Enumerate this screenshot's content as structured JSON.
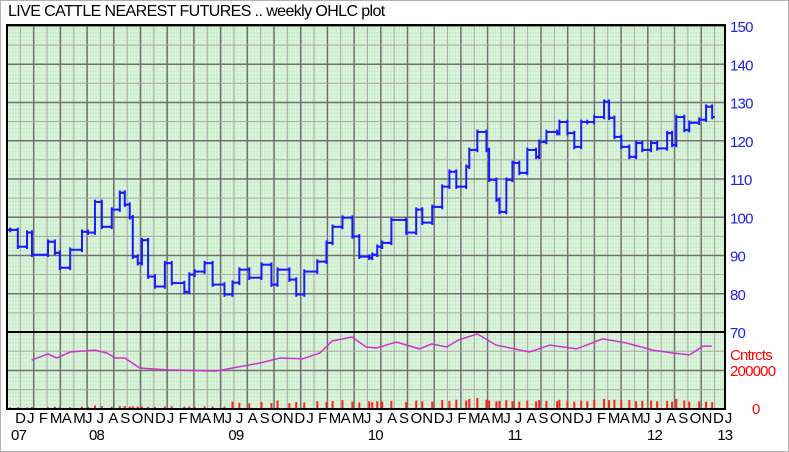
{
  "chart_data": {
    "type": "ohlc",
    "title": "LIVE CATTLE NEAREST FUTURES .. weekly OHLC plot",
    "price_axis": {
      "ticks": [
        150,
        140,
        130,
        120,
        110,
        100,
        90,
        80,
        70
      ],
      "ylim": [
        70,
        150
      ],
      "position": "right",
      "color": "#2020e0"
    },
    "volume_axis": {
      "label": "Cntrcts",
      "ticks": [
        {
          "label": "200000",
          "value": 200000
        },
        {
          "label": "0",
          "value": 0
        }
      ],
      "ylim": [
        0,
        400000
      ],
      "color": "#ff0000"
    },
    "xlim": [
      "2007-11-15",
      "2013-01-10"
    ],
    "grid": true,
    "colors": {
      "price": "#1a1aff",
      "open_interest": "#cc33cc",
      "volume": "#ff2020",
      "background": "#cdeecd",
      "axis": "#2020e0"
    },
    "month_labels": [
      {
        "label": "D",
        "date": "2007-12-01"
      },
      {
        "label": "J",
        "date": "2008-01-01"
      },
      {
        "label": "F",
        "date": "2008-02-01"
      },
      {
        "label": "M",
        "date": "2008-03-01"
      },
      {
        "label": "A",
        "date": "2008-04-01"
      },
      {
        "label": "M",
        "date": "2008-05-01"
      },
      {
        "label": "J",
        "date": "2008-06-01"
      },
      {
        "label": "J",
        "date": "2008-07-01"
      },
      {
        "label": "A",
        "date": "2008-08-01"
      },
      {
        "label": "S",
        "date": "2008-09-01"
      },
      {
        "label": "O",
        "date": "2008-10-01"
      },
      {
        "label": "N",
        "date": "2008-11-01"
      },
      {
        "label": "D",
        "date": "2008-12-01"
      },
      {
        "label": "J",
        "date": "2009-01-01"
      },
      {
        "label": "F",
        "date": "2009-02-01"
      },
      {
        "label": "M",
        "date": "2009-03-01"
      },
      {
        "label": "A",
        "date": "2009-04-01"
      },
      {
        "label": "M",
        "date": "2009-05-01"
      },
      {
        "label": "J",
        "date": "2009-06-01"
      },
      {
        "label": "J",
        "date": "2009-07-01"
      },
      {
        "label": "A",
        "date": "2009-08-01"
      },
      {
        "label": "S",
        "date": "2009-09-01"
      },
      {
        "label": "O",
        "date": "2009-10-01"
      },
      {
        "label": "N",
        "date": "2009-11-01"
      },
      {
        "label": "D",
        "date": "2009-12-01"
      },
      {
        "label": "J",
        "date": "2010-01-01"
      },
      {
        "label": "F",
        "date": "2010-02-01"
      },
      {
        "label": "M",
        "date": "2010-03-01"
      },
      {
        "label": "A",
        "date": "2010-04-01"
      },
      {
        "label": "M",
        "date": "2010-05-01"
      },
      {
        "label": "J",
        "date": "2010-06-01"
      },
      {
        "label": "J",
        "date": "2010-07-01"
      },
      {
        "label": "A",
        "date": "2010-08-01"
      },
      {
        "label": "S",
        "date": "2010-09-01"
      },
      {
        "label": "O",
        "date": "2010-10-01"
      },
      {
        "label": "N",
        "date": "2010-11-01"
      },
      {
        "label": "D",
        "date": "2010-12-01"
      },
      {
        "label": "J",
        "date": "2011-01-01"
      },
      {
        "label": "F",
        "date": "2011-02-01"
      },
      {
        "label": "M",
        "date": "2011-03-01"
      },
      {
        "label": "A",
        "date": "2011-04-01"
      },
      {
        "label": "M",
        "date": "2011-05-01"
      },
      {
        "label": "J",
        "date": "2011-06-01"
      },
      {
        "label": "J",
        "date": "2011-07-01"
      },
      {
        "label": "A",
        "date": "2011-08-01"
      },
      {
        "label": "S",
        "date": "2011-09-01"
      },
      {
        "label": "O",
        "date": "2011-10-01"
      },
      {
        "label": "N",
        "date": "2011-11-01"
      },
      {
        "label": "D",
        "date": "2011-12-01"
      },
      {
        "label": "J",
        "date": "2012-01-01"
      },
      {
        "label": "F",
        "date": "2012-02-01"
      },
      {
        "label": "M",
        "date": "2012-03-01"
      },
      {
        "label": "A",
        "date": "2012-04-01"
      },
      {
        "label": "M",
        "date": "2012-05-01"
      },
      {
        "label": "J",
        "date": "2012-06-01"
      },
      {
        "label": "J",
        "date": "2012-07-01"
      },
      {
        "label": "A",
        "date": "2012-08-01"
      },
      {
        "label": "S",
        "date": "2012-09-01"
      },
      {
        "label": "O",
        "date": "2012-10-01"
      },
      {
        "label": "N",
        "date": "2012-11-01"
      },
      {
        "label": "D",
        "date": "2012-12-01"
      },
      {
        "label": "J",
        "date": "2013-01-01"
      }
    ],
    "year_labels": [
      {
        "label": "07",
        "date": "2007-12-10"
      },
      {
        "label": "08",
        "date": "2008-07-01"
      },
      {
        "label": "09",
        "date": "2009-07-01"
      },
      {
        "label": "10",
        "date": "2010-07-01"
      },
      {
        "label": "11",
        "date": "2011-07-01"
      },
      {
        "label": "12",
        "date": "2012-07-01"
      },
      {
        "label": "13",
        "date": "2013-01-01"
      }
    ],
    "price": [
      {
        "date": "2007-11-18",
        "close": 96.7,
        "volume": 8000
      },
      {
        "date": "2007-12-08",
        "close": 92.3,
        "volume": 9000
      },
      {
        "date": "2008-01-01",
        "close": 96.0,
        "volume": 8000
      },
      {
        "date": "2008-01-14",
        "close": 90.2,
        "volume": 10000
      },
      {
        "date": "2008-02-25",
        "close": 93.6,
        "volume": 9000
      },
      {
        "date": "2008-03-14",
        "close": 90.7,
        "volume": 12000
      },
      {
        "date": "2008-03-27",
        "close": 86.8,
        "volume": 10000
      },
      {
        "date": "2008-04-23",
        "close": 91.5,
        "volume": 9000
      },
      {
        "date": "2008-05-24",
        "close": 96.2,
        "volume": 12000
      },
      {
        "date": "2008-06-09",
        "close": 96.0,
        "volume": 11000
      },
      {
        "date": "2008-06-27",
        "close": 104.0,
        "volume": 18000
      },
      {
        "date": "2008-07-15",
        "close": 97.5,
        "volume": 15000
      },
      {
        "date": "2008-08-10",
        "close": 102.0,
        "volume": 12000
      },
      {
        "date": "2008-08-31",
        "close": 106.4,
        "volume": 14000
      },
      {
        "date": "2008-09-13",
        "close": 103.3,
        "volume": 15000
      },
      {
        "date": "2008-09-26",
        "close": 100.0,
        "volume": 13000
      },
      {
        "date": "2008-10-04",
        "close": 89.7,
        "volume": 14000
      },
      {
        "date": "2008-10-17",
        "close": 88.0,
        "volume": 12000
      },
      {
        "date": "2008-10-28",
        "close": 94.0,
        "volume": 13000
      },
      {
        "date": "2008-11-13",
        "close": 84.5,
        "volume": 12000
      },
      {
        "date": "2008-12-01",
        "close": 81.9,
        "volume": 11000
      },
      {
        "date": "2008-12-27",
        "close": 88.0,
        "volume": 13000
      },
      {
        "date": "2009-01-14",
        "close": 82.8,
        "volume": 14000
      },
      {
        "date": "2009-02-16",
        "close": 80.5,
        "volume": 12000
      },
      {
        "date": "2009-03-01",
        "close": 85.0,
        "volume": 13000
      },
      {
        "date": "2009-03-15",
        "close": 85.8,
        "volume": 12000
      },
      {
        "date": "2009-04-10",
        "close": 88.0,
        "volume": 14000
      },
      {
        "date": "2009-05-01",
        "close": 82.4,
        "volume": 13000
      },
      {
        "date": "2009-06-01",
        "close": 79.8,
        "volume": 12000
      },
      {
        "date": "2009-06-22",
        "close": 82.9,
        "volume": 38000
      },
      {
        "date": "2009-07-10",
        "close": 86.3,
        "volume": 32000
      },
      {
        "date": "2009-08-05",
        "close": 84.2,
        "volume": 30000
      },
      {
        "date": "2009-09-06",
        "close": 87.6,
        "volume": 36000
      },
      {
        "date": "2009-10-02",
        "close": 82.4,
        "volume": 31000
      },
      {
        "date": "2009-10-18",
        "close": 86.3,
        "volume": 44000
      },
      {
        "date": "2009-11-18",
        "close": 83.7,
        "volume": 30000
      },
      {
        "date": "2009-12-06",
        "close": 79.8,
        "volume": 36000
      },
      {
        "date": "2009-12-27",
        "close": 85.8,
        "volume": 34000
      },
      {
        "date": "2010-01-30",
        "close": 88.4,
        "volume": 40000
      },
      {
        "date": "2010-02-23",
        "close": 93.3,
        "volume": 36000
      },
      {
        "date": "2010-03-11",
        "close": 97.5,
        "volume": 42000
      },
      {
        "date": "2010-04-06",
        "close": 99.9,
        "volume": 46000
      },
      {
        "date": "2010-05-02",
        "close": 95.0,
        "volume": 38000
      },
      {
        "date": "2010-05-20",
        "close": 89.7,
        "volume": 34000
      },
      {
        "date": "2010-06-15",
        "close": 89.4,
        "volume": 40000
      },
      {
        "date": "2010-06-23",
        "close": 90.2,
        "volume": 36000
      },
      {
        "date": "2010-07-06",
        "close": 92.3,
        "volume": 40000
      },
      {
        "date": "2010-07-19",
        "close": 93.3,
        "volume": 38000
      },
      {
        "date": "2010-08-12",
        "close": 99.3,
        "volume": 42000
      },
      {
        "date": "2010-09-20",
        "close": 96.0,
        "volume": 36000
      },
      {
        "date": "2010-10-16",
        "close": 102.0,
        "volume": 44000
      },
      {
        "date": "2010-11-01",
        "close": 98.6,
        "volume": 40000
      },
      {
        "date": "2010-11-27",
        "close": 102.7,
        "volume": 38000
      },
      {
        "date": "2010-12-23",
        "close": 108.0,
        "volume": 46000
      },
      {
        "date": "2011-01-11",
        "close": 111.9,
        "volume": 42000
      },
      {
        "date": "2011-01-29",
        "close": 108.0,
        "volume": 48000
      },
      {
        "date": "2011-02-24",
        "close": 113.2,
        "volume": 44000
      },
      {
        "date": "2011-03-04",
        "close": 117.6,
        "volume": 52000
      },
      {
        "date": "2011-03-25",
        "close": 122.3,
        "volume": 58000
      },
      {
        "date": "2011-04-18",
        "close": 117.6,
        "volume": 48000
      },
      {
        "date": "2011-04-25",
        "close": 109.8,
        "volume": 44000
      },
      {
        "date": "2011-05-14",
        "close": 104.6,
        "volume": 40000
      },
      {
        "date": "2011-05-22",
        "close": 101.4,
        "volume": 42000
      },
      {
        "date": "2011-06-09",
        "close": 109.8,
        "volume": 46000
      },
      {
        "date": "2011-06-25",
        "close": 114.2,
        "volume": 40000
      },
      {
        "date": "2011-07-13",
        "close": 111.6,
        "volume": 38000
      },
      {
        "date": "2011-08-03",
        "close": 117.6,
        "volume": 44000
      },
      {
        "date": "2011-08-26",
        "close": 115.8,
        "volume": 40000
      },
      {
        "date": "2011-09-03",
        "close": 119.7,
        "volume": 46000
      },
      {
        "date": "2011-09-22",
        "close": 122.3,
        "volume": 42000
      },
      {
        "date": "2011-10-20",
        "close": 122.0,
        "volume": 40000
      },
      {
        "date": "2011-10-26",
        "close": 124.9,
        "volume": 48000
      },
      {
        "date": "2011-11-16",
        "close": 122.0,
        "volume": 42000
      },
      {
        "date": "2011-12-04",
        "close": 118.4,
        "volume": 38000
      },
      {
        "date": "2011-12-22",
        "close": 124.9,
        "volume": 44000
      },
      {
        "date": "2012-01-07",
        "close": 124.9,
        "volume": 40000
      },
      {
        "date": "2012-01-25",
        "close": 126.2,
        "volume": 46000
      },
      {
        "date": "2012-02-20",
        "close": 130.2,
        "volume": 52000
      },
      {
        "date": "2012-03-04",
        "close": 126.0,
        "volume": 46000
      },
      {
        "date": "2012-03-18",
        "close": 121.0,
        "volume": 48000
      },
      {
        "date": "2012-04-05",
        "close": 118.4,
        "volume": 44000
      },
      {
        "date": "2012-04-26",
        "close": 115.8,
        "volume": 46000
      },
      {
        "date": "2012-05-14",
        "close": 119.4,
        "volume": 40000
      },
      {
        "date": "2012-05-30",
        "close": 117.6,
        "volume": 42000
      },
      {
        "date": "2012-06-22",
        "close": 119.4,
        "volume": 44000
      },
      {
        "date": "2012-07-08",
        "close": 118.0,
        "volume": 40000
      },
      {
        "date": "2012-08-03",
        "close": 122.0,
        "volume": 42000
      },
      {
        "date": "2012-08-16",
        "close": 118.9,
        "volume": 38000
      },
      {
        "date": "2012-08-27",
        "close": 126.2,
        "volume": 52000
      },
      {
        "date": "2012-09-17",
        "close": 122.8,
        "volume": 44000
      },
      {
        "date": "2012-09-30",
        "close": 124.7,
        "volume": 38000
      },
      {
        "date": "2012-10-26",
        "close": 125.5,
        "volume": 40000
      },
      {
        "date": "2012-11-13",
        "close": 128.9,
        "volume": 38000
      },
      {
        "date": "2012-11-29",
        "close": 126.2,
        "volume": 36000
      }
    ],
    "open_interest": [
      {
        "date": "2008-01-13",
        "value": 254000
      },
      {
        "date": "2008-02-25",
        "value": 286000
      },
      {
        "date": "2008-03-19",
        "value": 265000
      },
      {
        "date": "2008-04-23",
        "value": 296000
      },
      {
        "date": "2008-06-27",
        "value": 306000
      },
      {
        "date": "2008-07-28",
        "value": 291000
      },
      {
        "date": "2008-08-19",
        "value": 265000
      },
      {
        "date": "2008-09-13",
        "value": 265000
      },
      {
        "date": "2008-10-22",
        "value": 213000
      },
      {
        "date": "2009-01-02",
        "value": 203000
      },
      {
        "date": "2009-05-10",
        "value": 197000
      },
      {
        "date": "2009-06-22",
        "value": 213000
      },
      {
        "date": "2009-09-02",
        "value": 239000
      },
      {
        "date": "2009-10-25",
        "value": 265000
      },
      {
        "date": "2009-12-22",
        "value": 260000
      },
      {
        "date": "2010-02-06",
        "value": 291000
      },
      {
        "date": "2010-03-10",
        "value": 353000
      },
      {
        "date": "2010-05-01",
        "value": 374000
      },
      {
        "date": "2010-06-07",
        "value": 322000
      },
      {
        "date": "2010-07-04",
        "value": 317000
      },
      {
        "date": "2010-08-25",
        "value": 348000
      },
      {
        "date": "2010-10-25",
        "value": 312000
      },
      {
        "date": "2010-11-25",
        "value": 338000
      },
      {
        "date": "2011-01-04",
        "value": 322000
      },
      {
        "date": "2011-02-03",
        "value": 358000
      },
      {
        "date": "2011-03-25",
        "value": 390000
      },
      {
        "date": "2011-05-13",
        "value": 332000
      },
      {
        "date": "2011-08-09",
        "value": 296000
      },
      {
        "date": "2011-10-01",
        "value": 332000
      },
      {
        "date": "2011-12-10",
        "value": 312000
      },
      {
        "date": "2012-02-16",
        "value": 364000
      },
      {
        "date": "2012-04-19",
        "value": 343000
      },
      {
        "date": "2012-06-26",
        "value": 306000
      },
      {
        "date": "2012-08-18",
        "value": 291000
      },
      {
        "date": "2012-10-01",
        "value": 281000
      },
      {
        "date": "2012-11-05",
        "value": 327000
      },
      {
        "date": "2012-11-28",
        "value": 327000
      }
    ]
  }
}
